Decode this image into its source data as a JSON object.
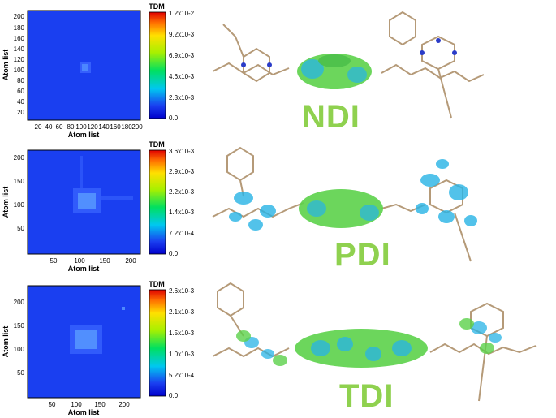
{
  "panels": [
    {
      "id": "ndi",
      "molecule_label": "NDI",
      "colorbar_title": "TDM",
      "colorbar_ticks": [
        "1.2x10-2",
        "9.2x10-3",
        "6.9x10-3",
        "4.6x10-3",
        "2.3x10-3",
        "0.0"
      ],
      "x_ticks": [
        "20",
        "40",
        "60",
        "80",
        "100",
        "120",
        "140",
        "160",
        "180",
        "200"
      ],
      "y_ticks": [
        "200",
        "180",
        "160",
        "140",
        "120",
        "100",
        "80",
        "60",
        "40",
        "20"
      ],
      "xlabel": "Atom list",
      "ylabel": "Atom list",
      "axis_max": 210
    },
    {
      "id": "pdi",
      "molecule_label": "PDI",
      "colorbar_title": "TDM",
      "colorbar_ticks": [
        "3.6x10-3",
        "2.9x10-3",
        "2.2x10-3",
        "1.4x10-3",
        "7.2x10-4",
        "0.0"
      ],
      "x_ticks": [
        "50",
        "100",
        "150",
        "200"
      ],
      "y_ticks": [
        "200",
        "150",
        "100",
        "50"
      ],
      "xlabel": "Atom list",
      "ylabel": "Atom list",
      "axis_max": 220
    },
    {
      "id": "tdi",
      "molecule_label": "TDI",
      "colorbar_title": "TDM",
      "colorbar_ticks": [
        "2.6x10-3",
        "2.1x10-3",
        "1.5x10-3",
        "1.0x10-3",
        "5.2x10-4",
        "0.0"
      ],
      "x_ticks": [
        "50",
        "100",
        "150",
        "200"
      ],
      "y_ticks": [
        "200",
        "150",
        "100",
        "50"
      ],
      "xlabel": "Atom list",
      "ylabel": "Atom list",
      "axis_max": 235
    }
  ],
  "colors": {
    "map_background": "#1a3ff0",
    "label_green": "#8fd14f",
    "orbital_green": "#5cd14a",
    "orbital_cyan": "#27b4e6",
    "carbon": "#b59a78",
    "nitrogen": "#2b3cc8"
  }
}
